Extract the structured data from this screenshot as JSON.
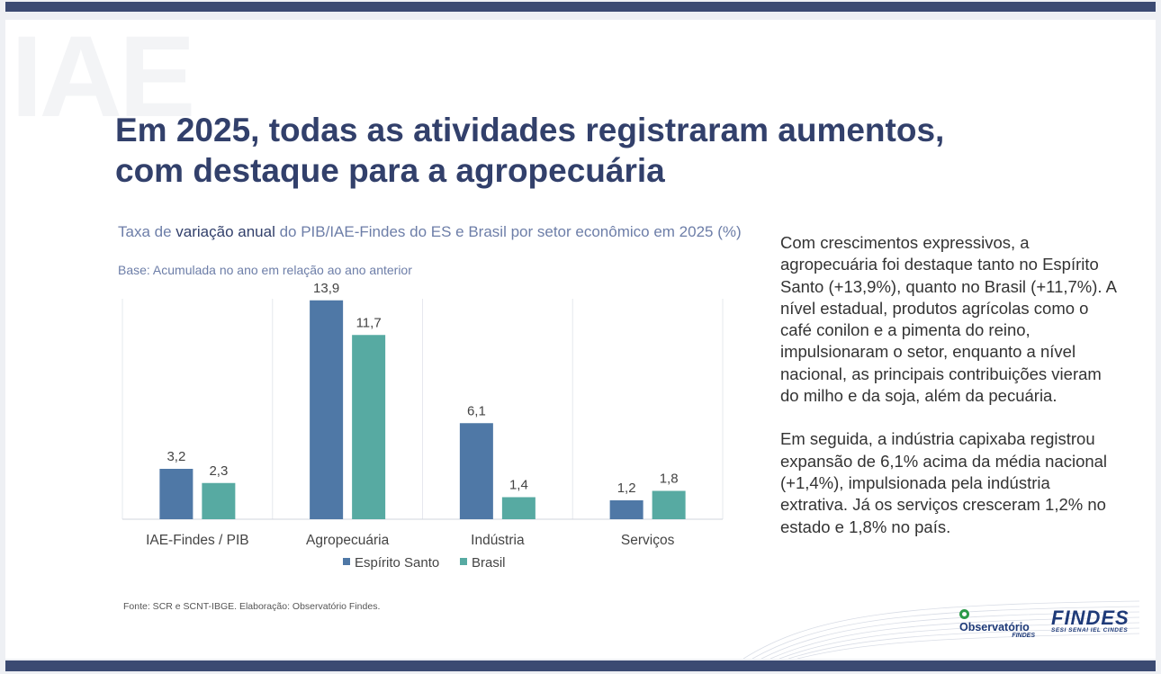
{
  "slide": {
    "watermark": "IAE",
    "headline": {
      "line1": "Em 2025, todas as atividades registraram aumentos,",
      "line2": "com destaque para a agropecuária"
    }
  },
  "chart": {
    "title_pre": "Taxa de ",
    "title_strong": "variação anual",
    "title_post": " do PIB/IAE-Findes do ES e Brasil por setor econômico em 2025 (%)",
    "subtitle": "Base: Acumulada no ano em relação ao ano anterior",
    "source": "Fonte: SCR e SCNT-IBGE. Elaboração: Observatório Findes."
  },
  "chart_data": {
    "type": "bar",
    "title": "Taxa de variação anual do PIB/IAE-Findes do ES e Brasil por setor econômico em 2025 (%)",
    "categories": [
      "IAE-Findes / PIB",
      "Agropecuária",
      "Indústria",
      "Serviços"
    ],
    "series": [
      {
        "name": "Espírito Santo",
        "values": [
          3.2,
          13.9,
          6.1,
          1.2
        ],
        "labels": [
          "3,2",
          "13,9",
          "6,1",
          "1,2"
        ],
        "color": "#4f78a6"
      },
      {
        "name": "Brasil",
        "values": [
          2.3,
          11.7,
          1.4,
          1.8
        ],
        "labels": [
          "2,3",
          "11,7",
          "1,4",
          "1,8"
        ],
        "color": "#57aaa2"
      }
    ],
    "xlabel": "",
    "ylabel": "",
    "ylim": [
      0,
      15
    ],
    "legend": "bottom-center",
    "grid": false
  },
  "commentary": {
    "paragraph1": "Com crescimentos expressivos, a agropecuária foi destaque tanto no Espírito Santo (+13,9%), quanto no Brasil (+11,7%). A nível estadual, produtos agrícolas como o café conilon e a pimenta do reino, impulsionaram o setor, enquanto a nível  nacional, as principais contribuições vieram do milho e da soja, além da pecuária.",
    "paragraph2": "Em seguida, a indústria capixaba registrou expansão de 6,1% acima da média nacional (+1,4%), impulsionada pela indústria extrativa. Já os serviços cresceram 1,2% no estado e 1,8% no país."
  },
  "logos": {
    "observatorio": "Observatório",
    "observatorio_sub": "FINDES",
    "findes": "FINDES",
    "findes_sub": "SESI SENAI IEL CINDES"
  },
  "colors": {
    "bar_frame": "#3b4a72",
    "headline": "#32406b",
    "chart_title": "#6d7ea8"
  }
}
